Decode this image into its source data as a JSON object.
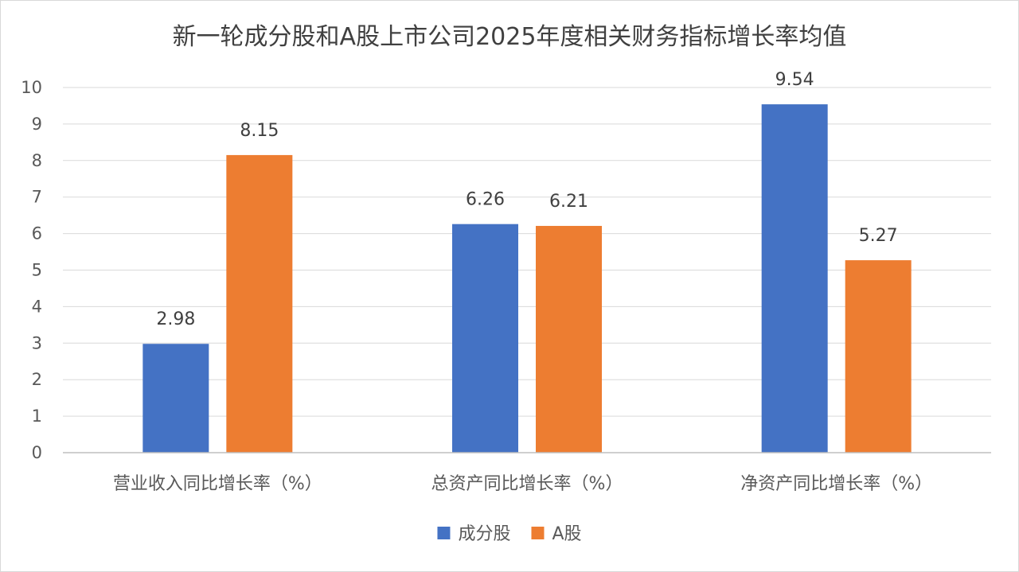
{
  "chart_data": {
    "type": "bar",
    "title": "新一轮成分股和A股上市公司2025年度相关财务指标增长率均值",
    "xlabel": "",
    "ylabel": "",
    "categories": [
      "营业收入同比增长率（%）",
      "总资产同比增长率（%）",
      "净资产同比增长率（%）"
    ],
    "series": [
      {
        "name": "成分股",
        "values": [
          2.98,
          6.26,
          9.54
        ],
        "color": "#4472C4"
      },
      {
        "name": "A股",
        "values": [
          8.15,
          6.21,
          5.27
        ],
        "color": "#ED7D31"
      }
    ],
    "ylim": [
      0,
      10
    ],
    "yticks": [
      0,
      1,
      2,
      3,
      4,
      5,
      6,
      7,
      8,
      9,
      10
    ],
    "grid": true,
    "legend_position": "bottom",
    "data_labels": true
  }
}
